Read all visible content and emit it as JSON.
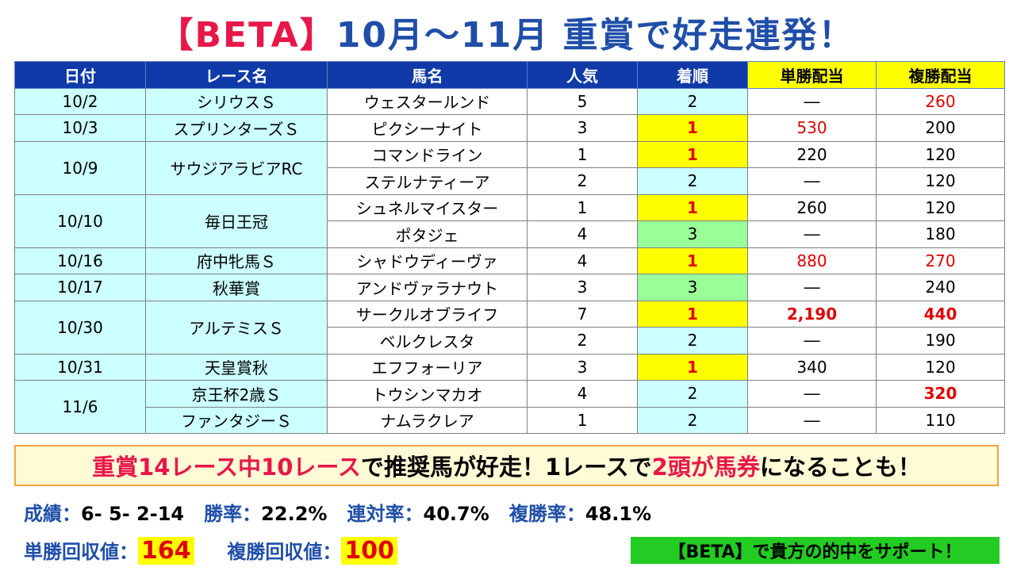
{
  "title": {
    "part1": "【BETA】",
    "part2": "10月～11月 重賞で好走連発！"
  },
  "table": {
    "headers": [
      "日付",
      "レース名",
      "馬名",
      "人気",
      "着順",
      "単勝配当",
      "複勝配当"
    ],
    "rows": [
      {
        "date": "10/2",
        "race": "シリウスＳ",
        "horse": "ウェスタールンド",
        "pop": "5",
        "rank": "2",
        "win": "―",
        "place": "260"
      },
      {
        "date": "10/3",
        "race": "スプリンターズＳ",
        "horse": "ピクシーナイト",
        "pop": "3",
        "rank": "1",
        "win": "530",
        "place": "200"
      },
      {
        "date": "10/9",
        "race": "サウジアラビアRC",
        "horse": "コマンドライン",
        "pop": "1",
        "rank": "1",
        "win": "220",
        "place": "120"
      },
      {
        "date": "",
        "race": "",
        "horse": "ステルナティーア",
        "pop": "2",
        "rank": "2",
        "win": "―",
        "place": "120"
      },
      {
        "date": "10/10",
        "race": "毎日王冠",
        "horse": "シュネルマイスター",
        "pop": "1",
        "rank": "1",
        "win": "260",
        "place": "120"
      },
      {
        "date": "",
        "race": "",
        "horse": "ポタジェ",
        "pop": "4",
        "rank": "3",
        "win": "―",
        "place": "180"
      },
      {
        "date": "10/16",
        "race": "府中牝馬Ｓ",
        "horse": "シャドウディーヴァ",
        "pop": "4",
        "rank": "1",
        "win": "880",
        "place": "270"
      },
      {
        "date": "10/17",
        "race": "秋華賞",
        "horse": "アンドヴァラナウト",
        "pop": "3",
        "rank": "3",
        "win": "―",
        "place": "240"
      },
      {
        "date": "10/30",
        "race": "アルテミスＳ",
        "horse": "サークルオブライフ",
        "pop": "7",
        "rank": "1",
        "win": "2,190",
        "place": "440"
      },
      {
        "date": "",
        "race": "",
        "horse": "ベルクレスタ",
        "pop": "2",
        "rank": "2",
        "win": "―",
        "place": "190"
      },
      {
        "date": "10/31",
        "race": "天皇賞秋",
        "horse": "エフフォーリア",
        "pop": "3",
        "rank": "1",
        "win": "340",
        "place": "120"
      },
      {
        "date": "11/6",
        "race": "京王杯2歳Ｓ",
        "horse": "トウシンマカオ",
        "pop": "4",
        "rank": "2",
        "win": "―",
        "place": "320"
      },
      {
        "date": "",
        "race": "ファンタジーＳ",
        "horse": "ナムラクレア",
        "pop": "1",
        "rank": "2",
        "win": "―",
        "place": "110"
      }
    ]
  },
  "banner": {
    "a": "重賞14レース中10レース",
    "b": "で推奨馬が好走！1レースで",
    "c": "2頭が馬券",
    "d": "になることも！"
  },
  "stats": {
    "record_label": "成績：",
    "record": "6- 5- 2-14",
    "winrate_label": "勝率：",
    "winrate": "22.2%",
    "quinella_label": "連対率：",
    "quinella": "40.7%",
    "show_label": "複勝率：",
    "show": "48.1%"
  },
  "returns": {
    "win_label": "単勝回収値：",
    "win": "164",
    "place_label": "複勝回収値：",
    "place": "100"
  },
  "support": "【BETA】で貴方の的中をサポート！",
  "colors": {
    "header_blue": "#0f3aa8",
    "cyan": "#ccffff",
    "yellow": "#ffff00",
    "green": "#99ff99",
    "red": "#e00000",
    "title_blue": "#1f4ea8",
    "title_pink": "#e8174a",
    "support_green": "#22cc22"
  }
}
